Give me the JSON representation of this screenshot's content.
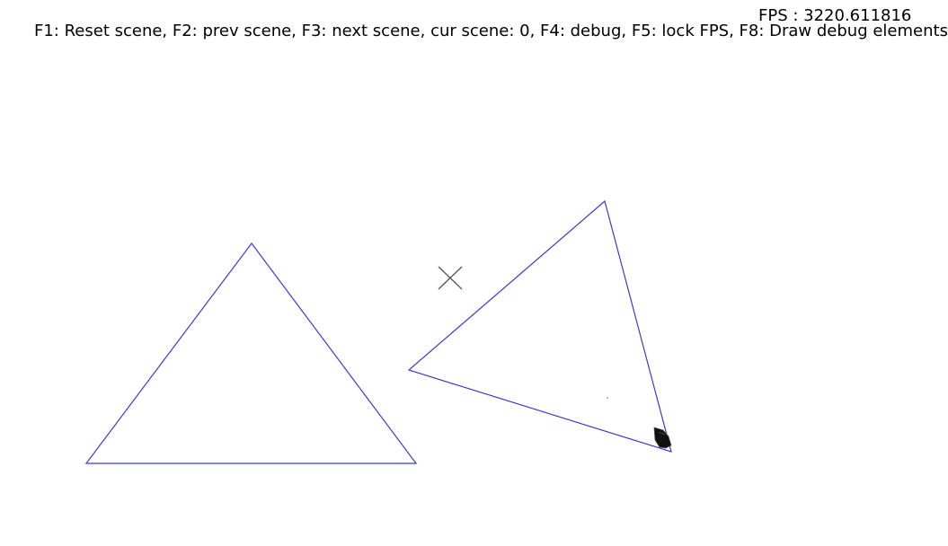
{
  "hud": {
    "fps_text": "FPS : 3220.611816",
    "help_text": "F1: Reset scene, F2: prev scene, F3: next scene, cur scene: 0, F4: debug, F5: lock FPS, F8: Draw debug elements"
  },
  "scene": {
    "outline_color": "#3c3ccc",
    "marker_color": "#555555",
    "cursor_color": "#111111",
    "shapes": [
      {
        "name": "triangle-left",
        "type": "triangle"
      },
      {
        "name": "triangle-right",
        "type": "triangle"
      }
    ],
    "marker": {
      "name": "center-cross",
      "icon": "x-cross-icon"
    },
    "cursor": {
      "icon": "mouse-cursor-icon"
    }
  }
}
